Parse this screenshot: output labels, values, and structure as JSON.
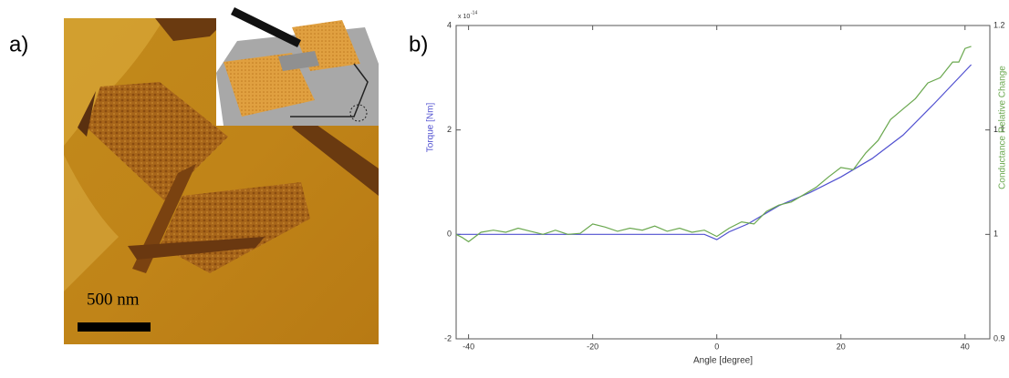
{
  "panels": {
    "a": {
      "label": "a)",
      "scale_bar": "500 nm"
    },
    "b": {
      "label": "b)"
    }
  },
  "chart_data": {
    "type": "line",
    "x_label": "Angle [degree]",
    "y_label": "Torque [Nm]",
    "y2_label": "Conductance Relative Change",
    "y_exponent": "x 10",
    "y_exponent_power": "-14",
    "xlim": [
      -42,
      44
    ],
    "xticks": [
      -40,
      -20,
      0,
      20,
      40
    ],
    "ylim": [
      -2,
      4
    ],
    "yticks": [
      -2,
      0,
      2,
      4
    ],
    "y2lim": [
      0.9,
      1.2
    ],
    "y2ticks": [
      0.9,
      1,
      1.1,
      1.2
    ],
    "grid": false,
    "series": [
      {
        "color": "#5050d0",
        "axis": "y",
        "x": [
          -42,
          -30,
          -20,
          -10,
          -2,
          0,
          2,
          5,
          10,
          15,
          20,
          25,
          30,
          35,
          41
        ],
        "values": [
          0,
          0,
          0,
          0,
          0,
          -0.1,
          0.05,
          0.2,
          0.55,
          0.8,
          1.1,
          1.45,
          1.9,
          2.5,
          3.25
        ]
      },
      {
        "color": "#6aa84f",
        "axis": "y2",
        "x": [
          -42,
          -41,
          -40,
          -38,
          -36,
          -34,
          -32,
          -30,
          -28,
          -26,
          -24,
          -22,
          -20,
          -18,
          -16,
          -14,
          -12,
          -10,
          -8,
          -6,
          -4,
          -2,
          0,
          2,
          4,
          6,
          8,
          10,
          12,
          14,
          16,
          18,
          20,
          22,
          24,
          26,
          28,
          30,
          32,
          34,
          36,
          38,
          39,
          40,
          41
        ],
        "values": [
          1.0,
          0.997,
          0.993,
          1.002,
          1.004,
          1.002,
          1.006,
          1.003,
          1.0,
          1.004,
          1.0,
          1.001,
          1.01,
          1.007,
          1.003,
          1.006,
          1.004,
          1.008,
          1.003,
          1.006,
          1.002,
          1.004,
          0.998,
          1.006,
          1.012,
          1.01,
          1.022,
          1.028,
          1.031,
          1.038,
          1.045,
          1.055,
          1.064,
          1.062,
          1.078,
          1.09,
          1.11,
          1.12,
          1.13,
          1.145,
          1.15,
          1.165,
          1.165,
          1.178,
          1.18
        ]
      }
    ]
  }
}
